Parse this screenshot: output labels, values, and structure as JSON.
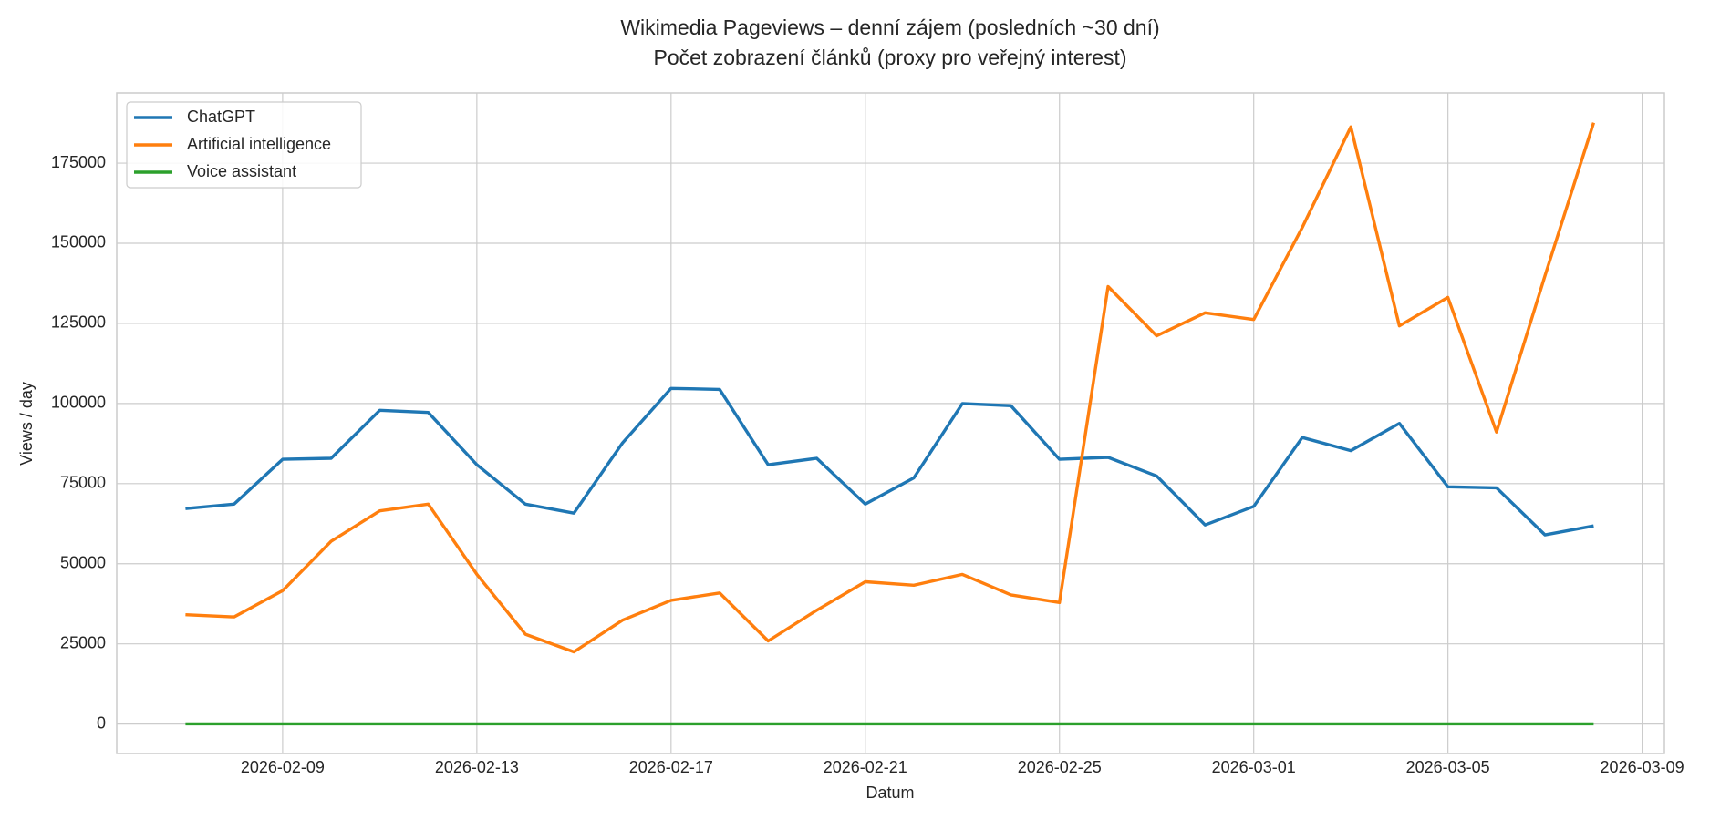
{
  "chart_data": {
    "type": "line",
    "title": "Wikimedia Pageviews – denní zájem (posledních ~30 dní)",
    "subtitle": "Počet zobrazení článků (proxy pro veřejný interest)",
    "x_label": "Datum",
    "y_label": "Views / day",
    "x": [
      "2026-02-07",
      "2026-02-08",
      "2026-02-09",
      "2026-02-10",
      "2026-02-11",
      "2026-02-12",
      "2026-02-13",
      "2026-02-14",
      "2026-02-15",
      "2026-02-16",
      "2026-02-17",
      "2026-02-18",
      "2026-02-19",
      "2026-02-20",
      "2026-02-21",
      "2026-02-22",
      "2026-02-23",
      "2026-02-24",
      "2026-02-25",
      "2026-02-26",
      "2026-02-27",
      "2026-02-28",
      "2026-03-01",
      "2026-03-02",
      "2026-03-03",
      "2026-03-04",
      "2026-03-05",
      "2026-03-06",
      "2026-03-07",
      "2026-03-08"
    ],
    "series": [
      {
        "name": "ChatGPT",
        "color": "#1f77b4",
        "values": [
          67200,
          68600,
          82600,
          82900,
          97900,
          97200,
          80900,
          68600,
          65800,
          87700,
          104700,
          104400,
          80900,
          82900,
          68600,
          76800,
          100000,
          99300,
          82600,
          83200,
          77400,
          62100,
          67900,
          89400,
          85300,
          93800,
          74000,
          73700,
          59000,
          61800
        ]
      },
      {
        "name": "Artificial intelligence",
        "color": "#ff7f0e",
        "values": [
          34100,
          33400,
          41600,
          57000,
          66500,
          68600,
          46700,
          28000,
          22500,
          32400,
          38600,
          40900,
          25900,
          35500,
          44400,
          43300,
          46700,
          40300,
          37900,
          136500,
          121100,
          128300,
          126200,
          154900,
          186300,
          124200,
          133100,
          91100,
          139900,
          187600
        ]
      },
      {
        "name": "Voice assistant",
        "color": "#2ca02c",
        "values": [
          80,
          80,
          80,
          80,
          80,
          80,
          80,
          80,
          80,
          80,
          80,
          80,
          80,
          80,
          80,
          80,
          80,
          80,
          80,
          80,
          80,
          80,
          80,
          80,
          80,
          80,
          80,
          80,
          80,
          80
        ]
      }
    ],
    "xlim": [
      "2026-02-05T14:00:00Z",
      "2026-03-09T11:00:00Z"
    ],
    "xticks": [
      "2026-02-09",
      "2026-02-13",
      "2026-02-17",
      "2026-02-21",
      "2026-02-25",
      "2026-03-01",
      "2026-03-05",
      "2026-03-09"
    ],
    "ylim": [
      -9200,
      196900
    ],
    "yticks": [
      0,
      25000,
      50000,
      75000,
      100000,
      125000,
      150000,
      175000
    ],
    "grid": true,
    "legend": "upper left"
  }
}
